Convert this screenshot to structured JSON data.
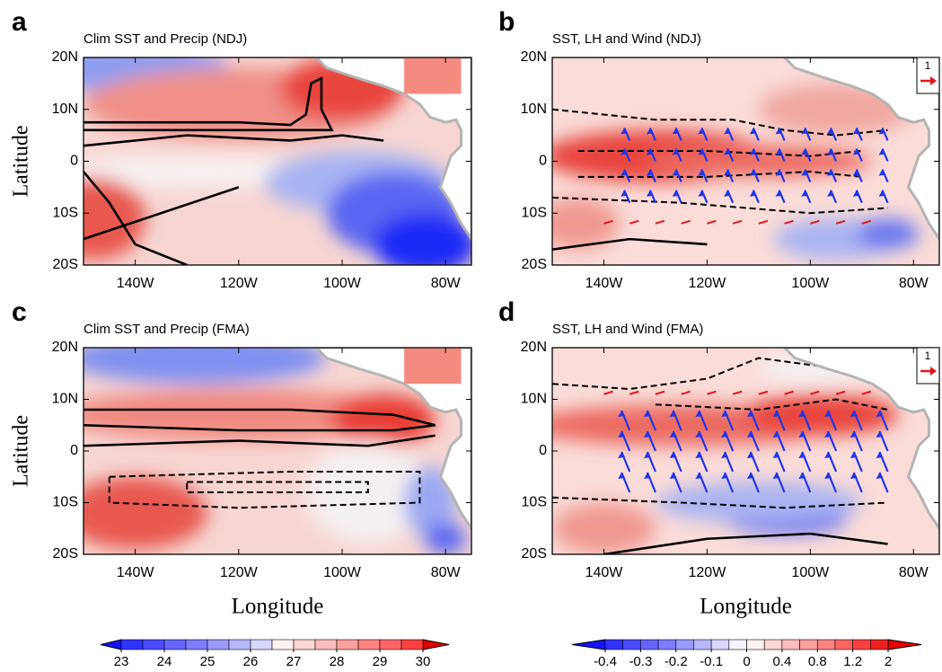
{
  "chart_data": [
    {
      "type": "map",
      "panel": "a",
      "title": "Clim SST and Precip (NDJ)",
      "ylabel": "Latitude",
      "xlim": [
        -150,
        -75
      ],
      "ylim": [
        -20,
        20
      ],
      "xticks": [
        {
          "value": -140,
          "label": "140W"
        },
        {
          "value": -120,
          "label": "120W"
        },
        {
          "value": -100,
          "label": "100W"
        },
        {
          "value": -80,
          "label": "80W"
        }
      ],
      "yticks": [
        {
          "value": 20,
          "label": "20N"
        },
        {
          "value": 10,
          "label": "10N"
        },
        0,
        {
          "value": -10,
          "label": "10S"
        },
        {
          "value": -20,
          "label": "20S"
        }
      ]
    },
    {
      "type": "map",
      "panel": "b",
      "title": "SST, LH and Wind (NDJ)",
      "vector_key": 1,
      "xlim": [
        -150,
        -75
      ],
      "ylim": [
        -20,
        20
      ],
      "xticks": [
        {
          "value": -140,
          "label": "140W"
        },
        {
          "value": -120,
          "label": "120W"
        },
        {
          "value": -100,
          "label": "100W"
        },
        {
          "value": -80,
          "label": "80W"
        }
      ],
      "yticks": [
        {
          "value": 20,
          "label": "20N"
        },
        {
          "value": 10,
          "label": "10N"
        },
        0,
        {
          "value": -10,
          "label": "10S"
        },
        {
          "value": -20,
          "label": "20S"
        }
      ]
    },
    {
      "type": "map",
      "panel": "c",
      "title": "Clim SST and Precip (FMA)",
      "ylabel": "Latitude",
      "xlabel": "Longitude",
      "xlim": [
        -150,
        -75
      ],
      "ylim": [
        -20,
        20
      ],
      "xticks": [
        {
          "value": -140,
          "label": "140W"
        },
        {
          "value": -120,
          "label": "120W"
        },
        {
          "value": -100,
          "label": "100W"
        },
        {
          "value": -80,
          "label": "80W"
        }
      ],
      "yticks": [
        {
          "value": 20,
          "label": "20N"
        },
        {
          "value": 10,
          "label": "10N"
        },
        0,
        {
          "value": -10,
          "label": "10S"
        },
        {
          "value": -20,
          "label": "20S"
        }
      ]
    },
    {
      "type": "map",
      "panel": "d",
      "title": "SST, LH and Wind (FMA)",
      "xlabel": "Longitude",
      "vector_key": 1,
      "xlim": [
        -150,
        -75
      ],
      "ylim": [
        -20,
        20
      ],
      "xticks": [
        {
          "value": -140,
          "label": "140W"
        },
        {
          "value": -120,
          "label": "120W"
        },
        {
          "value": -100,
          "label": "100W"
        },
        {
          "value": -80,
          "label": "80W"
        }
      ],
      "yticks": [
        {
          "value": 20,
          "label": "20N"
        },
        {
          "value": 10,
          "label": "10N"
        },
        0,
        {
          "value": -10,
          "label": "10S"
        },
        {
          "value": -20,
          "label": "20S"
        }
      ]
    },
    {
      "type": "colorbar",
      "ticks": [
        23,
        24,
        25,
        26,
        27,
        28,
        29,
        30
      ],
      "colors": [
        "#1414ff",
        "#3232ff",
        "#4b4bff",
        "#6464ff",
        "#7d7dff",
        "#9a9aff",
        "#b8b8ff",
        "#d8d8ff",
        "#fff2f2",
        "#ffd6d6",
        "#ffbcbc",
        "#ffa0a0",
        "#ff8282",
        "#ff6464",
        "#ff4040",
        "#e60000"
      ]
    },
    {
      "type": "colorbar",
      "ticks": [
        -0.4,
        -0.3,
        -0.2,
        -0.1,
        0,
        0.4,
        0.8,
        1.2,
        2
      ],
      "colors": [
        "#1414ff",
        "#3232ff",
        "#4b4bff",
        "#6464ff",
        "#7d7dff",
        "#9a9aff",
        "#b8b8ff",
        "#d8d8ff",
        "#f4f4ff",
        "#fff2f2",
        "#ffd6d6",
        "#ffbcbc",
        "#ffa0a0",
        "#ff8282",
        "#ff6464",
        "#ff4040",
        "#f02020",
        "#e60000"
      ]
    }
  ]
}
